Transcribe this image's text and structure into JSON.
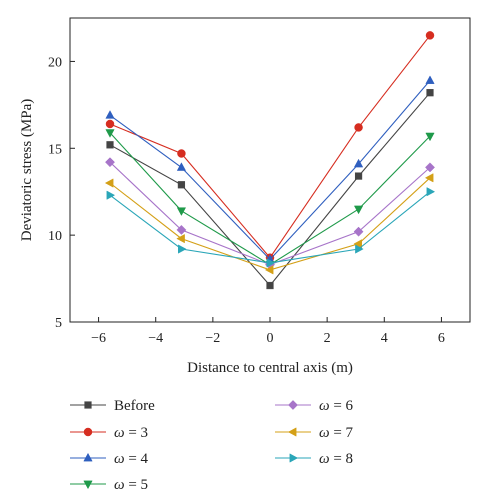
{
  "chart_data": {
    "type": "line",
    "xlabel": "Distance to central axis (m)",
    "ylabel": "Deviatoric stress (MPa)",
    "xlim": [
      -7,
      7
    ],
    "ylim": [
      5,
      22.5
    ],
    "xticks": [
      -6,
      -4,
      -2,
      0,
      2,
      4,
      6
    ],
    "yticks": [
      5,
      10,
      15,
      20
    ],
    "x": [
      -5.6,
      -3.1,
      0,
      3.1,
      5.6
    ],
    "series": [
      {
        "name": "Before",
        "symbol": "",
        "suffix": "",
        "marker": "square",
        "color": "#444444",
        "values": [
          15.2,
          12.9,
          7.1,
          13.4,
          18.2
        ]
      },
      {
        "name": "",
        "symbol": "ω",
        "suffix": " = 3",
        "marker": "circle",
        "color": "#d62d20",
        "values": [
          16.4,
          14.7,
          8.7,
          16.2,
          21.5
        ]
      },
      {
        "name": "",
        "symbol": "ω",
        "suffix": " = 4",
        "marker": "triangle-up",
        "color": "#2f5fbf",
        "values": [
          16.9,
          13.9,
          8.6,
          14.1,
          18.9
        ]
      },
      {
        "name": "",
        "symbol": "ω",
        "suffix": " = 5",
        "marker": "triangle-down",
        "color": "#1f9a4a",
        "values": [
          15.9,
          11.4,
          8.3,
          11.5,
          15.7
        ]
      },
      {
        "name": "",
        "symbol": "ω",
        "suffix": " = 6",
        "marker": "diamond",
        "color": "#a774c9",
        "values": [
          14.2,
          10.3,
          8.3,
          10.2,
          13.9
        ]
      },
      {
        "name": "",
        "symbol": "ω",
        "suffix": " = 7",
        "marker": "triangle-left",
        "color": "#d4a017",
        "values": [
          13.0,
          9.8,
          8.0,
          9.5,
          13.3
        ]
      },
      {
        "name": "",
        "symbol": "ω",
        "suffix": " = 8",
        "marker": "triangle-right",
        "color": "#2aa6b8",
        "values": [
          12.3,
          9.2,
          8.4,
          9.2,
          12.5
        ]
      }
    ],
    "legend_position": "bottom",
    "grid": false
  }
}
